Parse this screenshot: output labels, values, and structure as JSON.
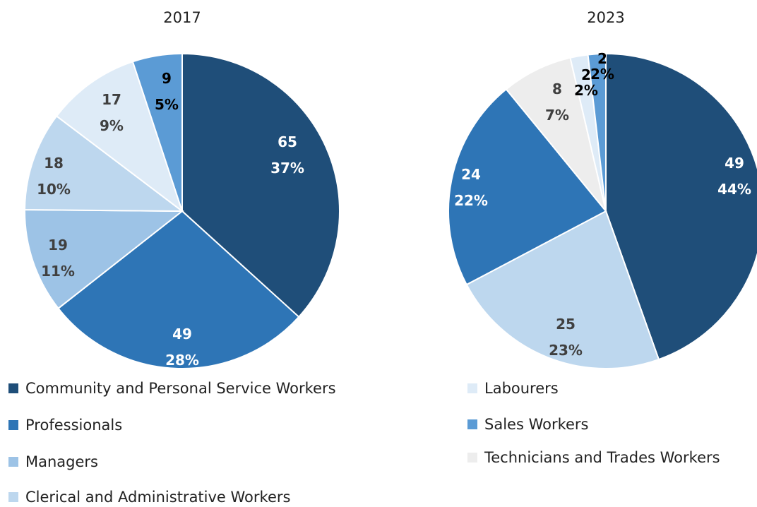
{
  "colors": {
    "Community and Personal Service Workers": "#1f4e79",
    "Professionals": "#2e75b6",
    "Managers": "#9dc3e6",
    "Clerical and Administrative Workers": "#bdd7ee",
    "Labourers": "#deebf7",
    "Sales Workers": "#5b9bd5",
    "Technicians and Trades Workers": "#ededed"
  },
  "legend": {
    "left": [
      "Community and Personal Service Workers",
      "Professionals",
      "Managers",
      "Clerical and Administrative Workers"
    ],
    "right": [
      "Labourers",
      "Sales Workers",
      "Technicians and Trades Workers"
    ]
  },
  "chart_data": [
    {
      "type": "pie",
      "title": "2017",
      "slices": [
        {
          "name": "Community and Personal Service Workers",
          "value": 65,
          "percent": "37%"
        },
        {
          "name": "Professionals",
          "value": 49,
          "percent": "28%"
        },
        {
          "name": "Managers",
          "value": 19,
          "percent": "11%"
        },
        {
          "name": "Clerical and Administrative Workers",
          "value": 18,
          "percent": "10%"
        },
        {
          "name": "Labourers",
          "value": 17,
          "percent": "9%"
        },
        {
          "name": "Sales Workers",
          "value": 9,
          "percent": "5%"
        }
      ]
    },
    {
      "type": "pie",
      "title": "2023",
      "slices": [
        {
          "name": "Community and Personal Service Workers",
          "value": 49,
          "percent": "44%"
        },
        {
          "name": "Clerical and Administrative Workers",
          "value": 25,
          "percent": "23%"
        },
        {
          "name": "Professionals",
          "value": 24,
          "percent": "22%"
        },
        {
          "name": "Technicians and Trades Workers",
          "value": 8,
          "percent": "7%"
        },
        {
          "name": "Labourers",
          "value": 2,
          "percent": "2%"
        },
        {
          "name": "Sales Workers",
          "value": 2,
          "percent": "2%"
        }
      ]
    }
  ]
}
